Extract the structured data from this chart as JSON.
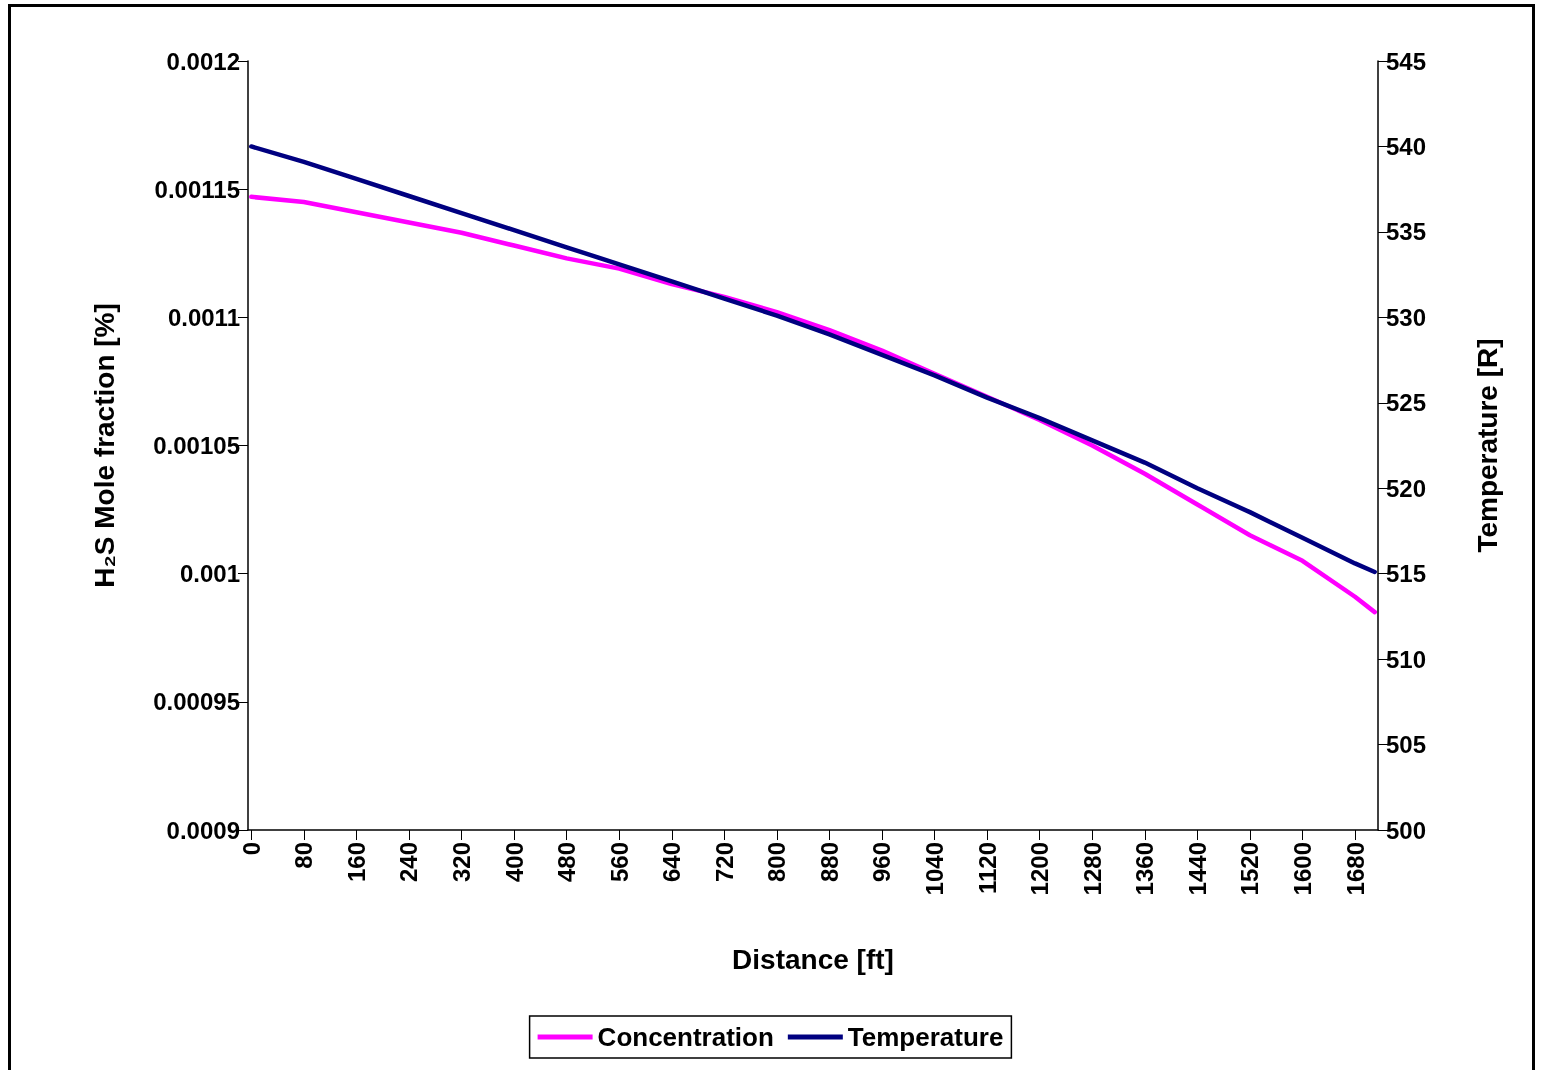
{
  "chart_data": {
    "type": "line",
    "xlabel": "Distance [ft]",
    "ylabel": "H₂S Mole fraction [%]",
    "y2label": "Temperature [R]",
    "x": [
      0,
      80,
      160,
      240,
      320,
      400,
      480,
      560,
      640,
      720,
      800,
      880,
      960,
      1040,
      1120,
      1200,
      1280,
      1360,
      1440,
      1520,
      1600,
      1680,
      1710
    ],
    "xlim": [
      -5,
      1715
    ],
    "xticks": [
      0,
      80,
      160,
      240,
      320,
      400,
      480,
      560,
      640,
      720,
      800,
      880,
      960,
      1040,
      1120,
      1200,
      1280,
      1360,
      1440,
      1520,
      1600,
      1680
    ],
    "ylim": [
      0.0009,
      0.0012
    ],
    "yticks": [
      0.0009,
      0.00095,
      0.001,
      0.00105,
      0.0011,
      0.00115,
      0.0012
    ],
    "y2lim": [
      500,
      545
    ],
    "y2ticks": [
      500,
      505,
      510,
      515,
      520,
      525,
      530,
      535,
      540,
      545
    ],
    "grid": false,
    "legend": "bottom",
    "marker": "none",
    "line_style": "solid",
    "series": [
      {
        "name": "Concentration",
        "color": "#ff00ff",
        "values": [
          0.001147,
          0.001145,
          0.001141,
          0.001137,
          0.001133,
          0.001128,
          0.001123,
          0.001119,
          0.001113,
          0.001108,
          0.001102,
          0.001095,
          0.001087,
          0.001078,
          0.001069,
          0.00106,
          0.00105,
          0.001039,
          0.001027,
          0.001015,
          0.001005,
          0.000991,
          0.000985
        ]
      },
      {
        "name": "Temperature",
        "color": "#000080",
        "axis": "y2",
        "values": [
          540,
          539.1,
          538.1,
          537.1,
          536.1,
          535.1,
          534.1,
          533.1,
          532.1,
          531.1,
          530.1,
          529,
          527.8,
          526.6,
          525.3,
          524.1,
          522.8,
          521.5,
          520,
          518.6,
          517.1,
          515.6,
          515.1
        ]
      }
    ]
  }
}
